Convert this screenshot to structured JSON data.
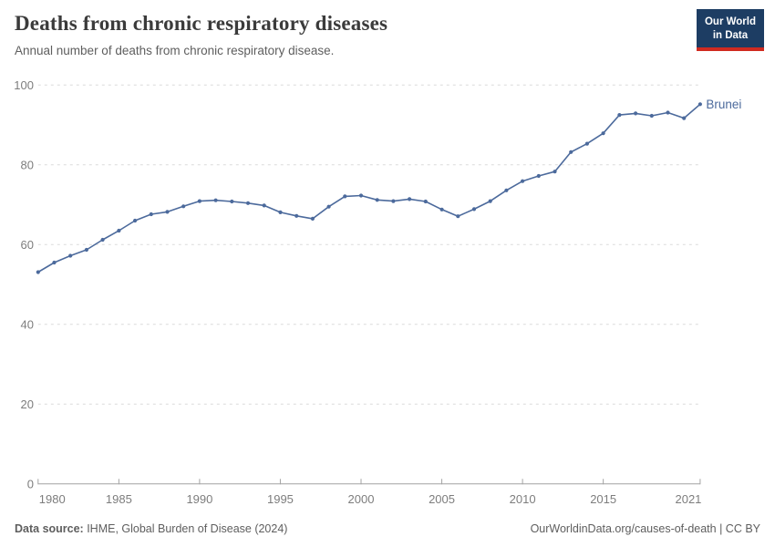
{
  "header": {
    "title": "Deaths from chronic respiratory diseases",
    "subtitle": "Annual number of deaths from chronic respiratory disease.",
    "logo": {
      "line1": "Our World",
      "line2": "in Data"
    }
  },
  "chart_data": {
    "type": "line",
    "title": "Deaths from chronic respiratory diseases",
    "subtitle": "Annual number of deaths from chronic respiratory disease.",
    "entity_label": "Brunei",
    "x": [
      1980,
      1981,
      1982,
      1983,
      1984,
      1985,
      1986,
      1987,
      1988,
      1989,
      1990,
      1991,
      1992,
      1993,
      1994,
      1995,
      1996,
      1997,
      1998,
      1999,
      2000,
      2001,
      2002,
      2003,
      2004,
      2005,
      2006,
      2007,
      2008,
      2009,
      2010,
      2011,
      2012,
      2013,
      2014,
      2015,
      2016,
      2017,
      2018,
      2019,
      2020,
      2021
    ],
    "series": [
      {
        "name": "Brunei",
        "values": [
          53.1,
          55.5,
          57.2,
          58.7,
          61.2,
          63.5,
          66.0,
          67.6,
          68.2,
          69.6,
          70.9,
          71.1,
          70.8,
          70.4,
          69.8,
          68.1,
          67.2,
          66.5,
          69.5,
          72.1,
          72.3,
          71.2,
          70.9,
          71.4,
          70.8,
          68.8,
          67.1,
          68.9,
          70.9,
          73.6,
          75.9,
          77.2,
          78.3,
          83.2,
          85.3,
          87.9,
          92.5,
          92.9,
          92.3,
          93.1,
          91.7,
          95.2
        ]
      }
    ],
    "xlabel": "",
    "ylabel": "",
    "ylim": [
      0,
      100
    ],
    "xlim": [
      1980,
      2021
    ],
    "yticks": [
      0,
      20,
      40,
      60,
      80,
      100
    ],
    "xticks": [
      1980,
      1985,
      1990,
      1995,
      2000,
      2005,
      2010,
      2015,
      2021
    ],
    "grid": "horizontal-dashed",
    "legend_position": "end-of-line-label",
    "line_color": "#4c6a9c"
  },
  "footer": {
    "source_label": "Data source:",
    "source_text": " IHME, Global Burden of Disease (2024)",
    "credit": "OurWorldinData.org/causes-of-death | CC BY"
  },
  "colors": {
    "accent_line": "#4c6a9c",
    "logo_bg": "#1d3d63",
    "logo_red": "#d02a20",
    "grid": "#dcdcdc",
    "axis": "#a3a3a3",
    "tick_label": "#7d7d7d",
    "title_text": "#3b3b3b",
    "muted_text": "#5e5e5e"
  }
}
